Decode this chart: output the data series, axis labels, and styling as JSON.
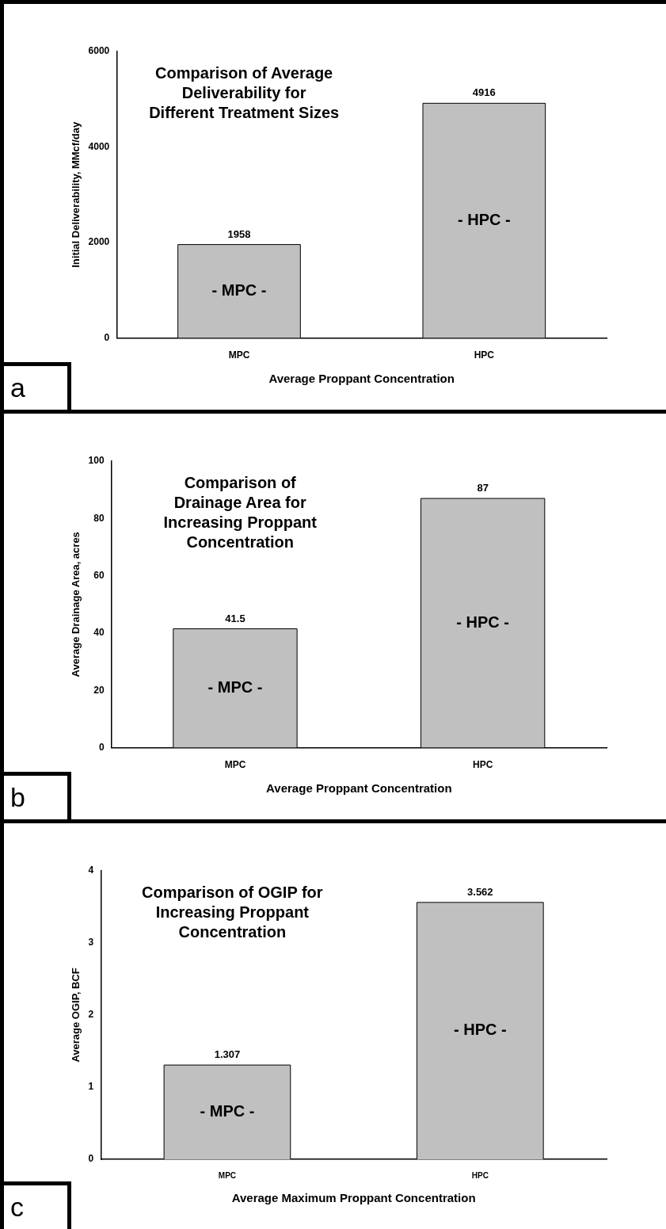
{
  "chart_data": [
    {
      "type": "bar",
      "title": "Comparison of Average\nDeliverability for\nDifferent Treatment Sizes",
      "categories": [
        "MPC",
        "HPC"
      ],
      "values": [
        1958,
        4916
      ],
      "color": "#c0c0c0",
      "ylim": [
        0,
        6000
      ],
      "yticks": [
        0,
        2000,
        4000,
        6000
      ],
      "ylabel": "Initial Deliverability, MMcf/day",
      "xlabel": "Average Proppant Concentration",
      "data_labels": true,
      "grid": false,
      "legend": false,
      "annotations": [
        "a",
        "- MPC -",
        "- HPC -"
      ]
    },
    {
      "type": "bar",
      "title": "Comparison of\nDrainage Area for\nIncreasing Proppant\nConcentration",
      "categories": [
        "MPC",
        "HPC"
      ],
      "values": [
        41.5,
        87
      ],
      "color": "#c0c0c0",
      "ylim": [
        0,
        100
      ],
      "yticks": [
        0,
        20,
        40,
        60,
        80,
        100
      ],
      "ylabel": "Average Drainage Area, acres",
      "xlabel": "Average Proppant Concentration",
      "data_labels": true,
      "grid": false,
      "legend": false,
      "annotations": [
        "b",
        "- MPC -",
        "- HPC -"
      ]
    },
    {
      "type": "bar",
      "title": "Comparison of OGIP for\nIncreasing Proppant\nConcentration",
      "categories": [
        "MPC",
        "HPC"
      ],
      "values": [
        1.307,
        3.562
      ],
      "color": "#c0c0c0",
      "ylim": [
        0,
        4
      ],
      "yticks": [
        0,
        1,
        2,
        3,
        4
      ],
      "ylabel": "Average OGIP, BCF",
      "xlabel": "Average Maximum Proppant Concentration",
      "data_labels": true,
      "grid": false,
      "legend": false,
      "annotations": [
        "c",
        "- MPC -",
        "- HPC -"
      ]
    }
  ]
}
